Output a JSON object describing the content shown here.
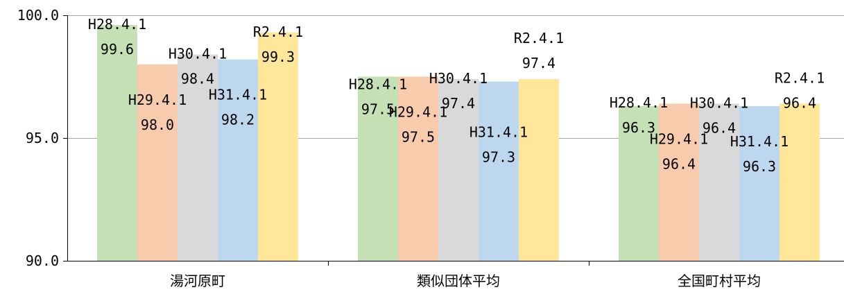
{
  "chart_data": {
    "type": "bar",
    "categories": [
      "湯河原町",
      "類似団体平均",
      "全国町村平均"
    ],
    "series": [
      {
        "name": "H28.4.1",
        "values": [
          99.6,
          97.5,
          96.3
        ],
        "color": "#c5e0b4"
      },
      {
        "name": "H29.4.1",
        "values": [
          98.0,
          97.5,
          96.4
        ],
        "color": "#f8cbad"
      },
      {
        "name": "H30.4.1",
        "values": [
          98.4,
          97.4,
          96.4
        ],
        "color": "#d9d9d9"
      },
      {
        "name": "H31.4.1",
        "values": [
          98.2,
          97.3,
          96.3
        ],
        "color": "#bdd7ee"
      },
      {
        "name": "R2.4.1",
        "values": [
          99.3,
          97.4,
          96.4
        ],
        "color": "#ffe699"
      }
    ],
    "value_labels": [
      [
        "99.6",
        "97.5",
        "96.3"
      ],
      [
        "98.0",
        "97.5",
        "96.4"
      ],
      [
        "98.4",
        "97.4",
        "96.4"
      ],
      [
        "98.2",
        "97.3",
        "96.3"
      ],
      [
        "99.3",
        "97.4",
        "96.4"
      ]
    ],
    "y_ticks": [
      "90.0",
      "95.0",
      "100.0"
    ],
    "ylim": [
      90,
      100
    ],
    "title": "",
    "xlabel": "",
    "ylabel": "",
    "grid": true,
    "legend": "none"
  }
}
